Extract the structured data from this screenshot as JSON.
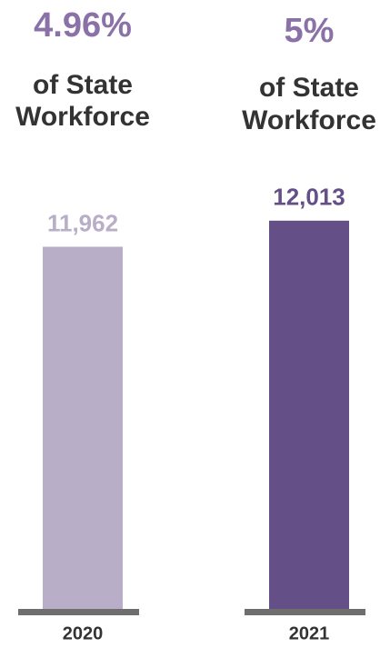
{
  "chart_data": {
    "type": "bar",
    "categories": [
      "2020",
      "2021"
    ],
    "values": [
      11962,
      12013
    ],
    "value_labels": [
      "11,962",
      "12,013"
    ],
    "colors": [
      "#b8aec8",
      "#654f87"
    ],
    "headlines": [
      "4.96%",
      "5%"
    ],
    "notes": [
      [
        "of State",
        "Workforce"
      ],
      [
        "of State",
        "Workforce"
      ]
    ],
    "ylim": [
      11250,
      12050
    ]
  }
}
